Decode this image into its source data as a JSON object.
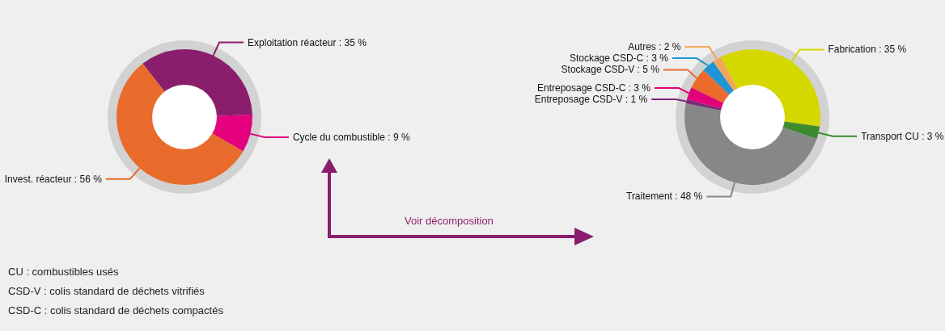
{
  "chart_data": [
    {
      "type": "donut",
      "categories": [
        "Exploitation réacteur",
        "Cycle du combustible",
        "Invest. réacteur"
      ],
      "values": [
        35,
        9,
        56
      ],
      "value_labels": [
        "35 %",
        "9 %",
        "56 %"
      ],
      "colors": [
        "#8b1e6c",
        "#e5007e",
        "#e96b2b"
      ],
      "legend": false,
      "annotations": [
        "Voir décomposition",
        "CU : combustibles usés",
        "CSD-V : colis standard de déchets vitrifiés",
        "CSD-C : colis standard de déchets compactés"
      ]
    },
    {
      "type": "donut",
      "categories": [
        "Fabrication",
        "Transport CU",
        "Traitement",
        "Entreposage CSD-V",
        "Entreposage CSD-C",
        "Stockage CSD-V",
        "Stockage CSD-C",
        "Autres"
      ],
      "values": [
        35,
        3,
        48,
        1,
        3,
        5,
        3,
        2
      ],
      "value_labels": [
        "35 %",
        "3 %",
        "48 %",
        "1 %",
        "3 %",
        "5 %",
        "3 %",
        "2 %"
      ],
      "colors": [
        "#d4d800",
        "#3d8b2f",
        "#878787",
        "#7b2a78",
        "#e2007a",
        "#ec6a2b",
        "#1e96d5",
        "#f3a659"
      ],
      "legend": false
    }
  ]
}
